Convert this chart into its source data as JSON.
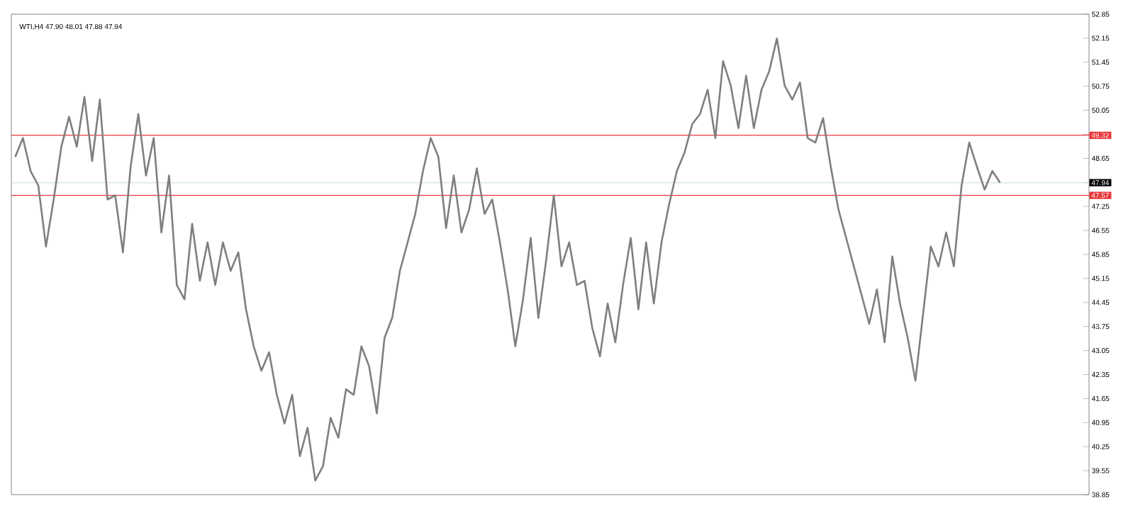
{
  "chart_data": {
    "type": "line",
    "title": "WTI,H4 47.90 48.01 47.88 47.94",
    "categories": [
      null,
      null,
      null,
      null,
      null,
      null,
      null,
      null,
      null,
      null,
      null,
      null,
      null,
      null,
      null,
      null,
      null,
      null,
      null,
      null,
      null,
      null,
      null,
      null,
      null,
      null,
      null,
      null,
      null,
      null,
      null,
      null,
      null,
      null,
      null,
      null,
      null,
      null,
      null,
      null,
      null,
      null,
      null,
      null,
      null,
      null,
      null,
      null,
      null,
      null,
      null,
      null,
      null,
      null,
      null,
      null,
      null,
      null,
      null,
      null,
      null,
      null,
      null,
      null,
      null,
      null,
      null,
      null,
      null,
      null,
      null,
      null,
      null,
      null,
      null,
      null,
      null,
      null,
      null,
      null,
      null,
      null,
      null,
      null,
      null,
      null,
      null,
      null,
      null,
      null,
      null,
      null,
      null,
      null,
      null,
      null,
      null,
      null,
      null,
      null,
      null,
      null,
      null,
      null,
      null,
      null,
      null,
      null,
      null,
      null,
      null,
      null,
      null,
      null,
      null,
      null,
      null,
      null,
      null,
      null,
      null,
      null,
      null,
      null,
      null,
      null,
      null,
      null,
      null
    ],
    "values": [
      48.69,
      49.24,
      48.28,
      47.86,
      46.08,
      47.45,
      48.99,
      49.86,
      48.99,
      50.44,
      48.57,
      50.36,
      47.45,
      47.57,
      45.91,
      48.4,
      49.94,
      48.15,
      49.24,
      46.49,
      48.15,
      44.96,
      44.54,
      46.74,
      45.08,
      46.2,
      44.96,
      46.2,
      45.37,
      45.91,
      44.25,
      43.17,
      42.46,
      43.0,
      41.76,
      40.92,
      41.76,
      39.97,
      40.8,
      39.26,
      39.68,
      41.09,
      40.51,
      41.92,
      41.76,
      43.17,
      42.59,
      41.22,
      43.42,
      44.0,
      45.37,
      46.2,
      47.03,
      48.28,
      49.24,
      48.69,
      46.62,
      48.15,
      46.49,
      47.16,
      48.36,
      47.03,
      47.45,
      46.2,
      44.83,
      43.17,
      44.54,
      46.33,
      44.0,
      45.66,
      47.57,
      45.5,
      46.2,
      44.96,
      45.08,
      43.71,
      42.88,
      44.42,
      43.29,
      44.96,
      46.33,
      44.25,
      46.2,
      44.42,
      46.2,
      47.32,
      48.28,
      48.82,
      49.65,
      49.94,
      50.65,
      49.24,
      51.48,
      50.77,
      49.53,
      51.06,
      49.53,
      50.65,
      51.19,
      52.14,
      50.77,
      50.36,
      50.86,
      49.24,
      49.11,
      49.82,
      48.4,
      47.16,
      46.33,
      45.5,
      44.67,
      43.83,
      44.83,
      43.29,
      45.79,
      44.42,
      43.42,
      42.17,
      44.12,
      46.08,
      45.5,
      46.49,
      45.5,
      47.86,
      49.11,
      48.4,
      47.74,
      48.28,
      47.94
    ],
    "color": "#7f7f7f",
    "ylim": [
      38.85,
      52.85
    ],
    "yticks": [
      52.85,
      52.15,
      51.45,
      50.75,
      50.05,
      {
        "value": 49.35,
        "label": null
      },
      48.65,
      {
        "value": 47.95,
        "label": null
      },
      47.25,
      46.55,
      45.85,
      45.15,
      44.45,
      43.75,
      43.05,
      42.35,
      41.65,
      40.95,
      40.25,
      39.55,
      38.85
    ],
    "tick_labels": "y",
    "ref_lines": [
      {
        "axis": "y",
        "value": 49.32,
        "label": "49.32",
        "color": "#e8363a"
      },
      {
        "axis": "y",
        "value": 47.57,
        "label": "47.57",
        "color": "#e8363a"
      },
      {
        "axis": "y",
        "value": 47.94,
        "label": "47.94",
        "color": "#cfe0ea"
      }
    ],
    "grid": false
  }
}
